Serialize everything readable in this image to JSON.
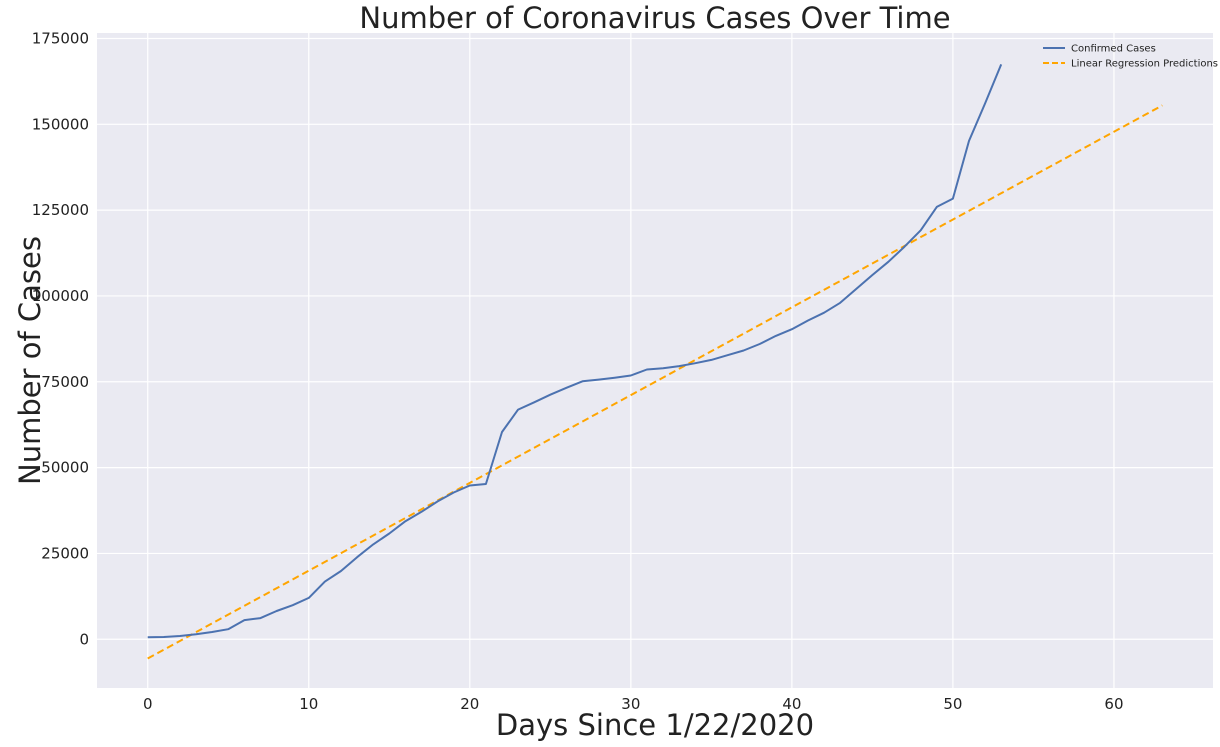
{
  "chart_data": {
    "type": "line",
    "title": "Number of Coronavirus Cases Over Time",
    "xlabel": "Days Since 1/22/2020",
    "ylabel": "Number of Cases",
    "xlim": [
      -3.15,
      66.15
    ],
    "ylim": [
      -14200,
      176600
    ],
    "xticks": [
      0,
      10,
      20,
      30,
      40,
      50,
      60
    ],
    "yticks": [
      0,
      25000,
      50000,
      75000,
      100000,
      125000,
      150000,
      175000
    ],
    "grid": true,
    "legend_position": "top-right",
    "colors": {
      "background": "#eaeaf2",
      "grid": "#ffffff",
      "confirmed": "#4c72b0",
      "regression": "#ffa500"
    },
    "series": [
      {
        "name": "Confirmed Cases",
        "style": "solid",
        "x": [
          0,
          1,
          2,
          3,
          4,
          5,
          6,
          7,
          8,
          9,
          10,
          11,
          12,
          13,
          14,
          15,
          16,
          17,
          18,
          19,
          20,
          21,
          22,
          23,
          24,
          25,
          26,
          27,
          28,
          29,
          30,
          31,
          32,
          33,
          34,
          35,
          36,
          37,
          38,
          39,
          40,
          41,
          42,
          43,
          44,
          45,
          46,
          47,
          48,
          49,
          50,
          51,
          52,
          53
        ],
        "y": [
          555,
          654,
          941,
          1434,
          2118,
          2927,
          5578,
          6166,
          8234,
          9927,
          12038,
          16787,
          19881,
          23892,
          27635,
          30794,
          34391,
          37120,
          40150,
          42762,
          44802,
          45221,
          60368,
          66885,
          69030,
          71224,
          73258,
          75136,
          75639,
          76197,
          76819,
          78572,
          78958,
          79561,
          80406,
          81388,
          82746,
          84112,
          86011,
          88369,
          90306,
          92840,
          95120,
          98006,
          102050,
          106099,
          109991,
          114384,
          119133,
          125939,
          128349,
          145183,
          156097,
          167454
        ]
      },
      {
        "name": "Linear Regression Predictions",
        "style": "dashed",
        "x": [
          0,
          63
        ],
        "y": [
          -5600,
          155500
        ]
      }
    ]
  }
}
